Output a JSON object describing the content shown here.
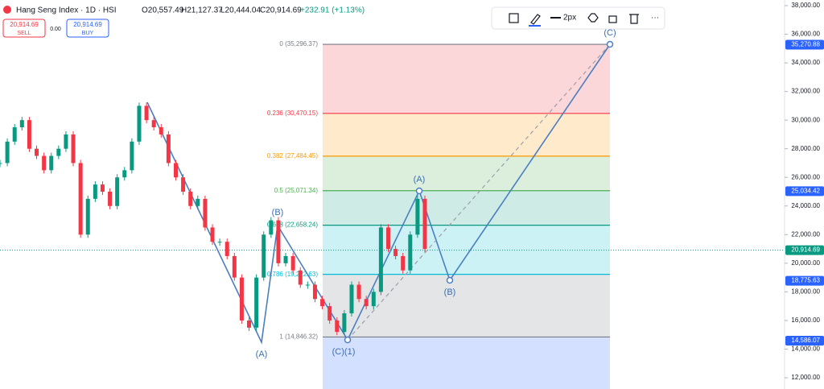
{
  "header": {
    "title": "Hang Seng Index · 1D · HSI",
    "open": "O20,557.49",
    "high": "H21,127.37",
    "low": "L20,444.04",
    "close": "C20,914.69",
    "change": "+232.91 (+1.13%)",
    "sell_price": "20,914.69",
    "sell": "SELL",
    "spread": "0.00",
    "buy_price": "20,914.69",
    "buy": "BUY"
  },
  "toolbar": {
    "width_label": "2px"
  },
  "price_axis": {
    "ylim": [
      12000,
      38000
    ],
    "ticks": [
      {
        "value": 38000,
        "label": "38,000.00"
      },
      {
        "value": 36000,
        "label": "36,000.00"
      },
      {
        "value": 34000,
        "label": "34,000.00"
      },
      {
        "value": 32000,
        "label": "32,000.00"
      },
      {
        "value": 30000,
        "label": "30,000.00"
      },
      {
        "value": 28000,
        "label": "28,000.00"
      },
      {
        "value": 26000,
        "label": "26,000.00"
      },
      {
        "value": 24000,
        "label": "24,000.00"
      },
      {
        "value": 22000,
        "label": "22,000.00"
      },
      {
        "value": 20000,
        "label": "20,000.00"
      },
      {
        "value": 18000,
        "label": "18,000.00"
      },
      {
        "value": 16000,
        "label": "16,000.00"
      },
      {
        "value": 14000,
        "label": "14,000.00"
      },
      {
        "value": 12000,
        "label": "12,000.00"
      }
    ],
    "tags": [
      {
        "value": 35270.88,
        "label": "35,270.88",
        "color": "#2962ff"
      },
      {
        "value": 25034.42,
        "label": "25,034.42",
        "color": "#2962ff"
      },
      {
        "value": 20914.69,
        "label": "20,914.69",
        "color": "#089981"
      },
      {
        "value": 18775.63,
        "label": "18,775.63",
        "color": "#2962ff"
      },
      {
        "value": 14586.07,
        "label": "14,586.07",
        "color": "#2962ff"
      }
    ]
  },
  "fib_levels": [
    {
      "value": 35296.37,
      "label": "0 (35,296.37)",
      "color": "#787b86",
      "zone": "rgba(242,54,69,0.2)"
    },
    {
      "value": 30470.15,
      "label": "0.236 (30,470.15)",
      "color": "#f23645",
      "zone": "rgba(255,152,0,0.2)"
    },
    {
      "value": 27484.45,
      "label": "0.382 (27,484.45)",
      "color": "#ff9800",
      "zone": "rgba(76,175,80,0.2)"
    },
    {
      "value": 25071.34,
      "label": "0.5 (25,071.34)",
      "color": "#4caf50",
      "zone": "rgba(8,153,129,0.2)"
    },
    {
      "value": 22658.24,
      "label": "0.618 (22,658.24)",
      "color": "#089981",
      "zone": "rgba(0,188,212,0.2)"
    },
    {
      "value": 19222.63,
      "label": "0.786 (19,222.63)",
      "color": "#00bcd4",
      "zone": "rgba(120,123,134,0.2)"
    },
    {
      "value": 14846.32,
      "label": "1 (14,846.32)",
      "color": "#787b86",
      "zone": "rgba(41,98,255,0.2)"
    }
  ],
  "wave_labels": [
    "(A)",
    "(B)",
    "(C)(1)",
    "(A)",
    "(B)",
    "(C)"
  ],
  "price_path": {
    "closes": [
      27000,
      28500,
      29500,
      30000,
      28000,
      27500,
      26500,
      27500,
      28000,
      29000,
      27000,
      22000,
      24500,
      25500,
      25000,
      24000,
      26000,
      26500,
      28500,
      31000,
      30000,
      29500,
      29000,
      27000,
      26000,
      25000,
      24000,
      24500,
      22500,
      21500,
      21500,
      20500,
      19000,
      16000,
      15500,
      19000,
      22000,
      23000,
      20000,
      20500,
      19500,
      18500,
      18500,
      17500,
      17000,
      16000,
      15200,
      16500,
      18500,
      17500,
      17000,
      18000,
      22500,
      21000,
      20500,
      19500,
      22000,
      24500,
      21000
    ]
  }
}
